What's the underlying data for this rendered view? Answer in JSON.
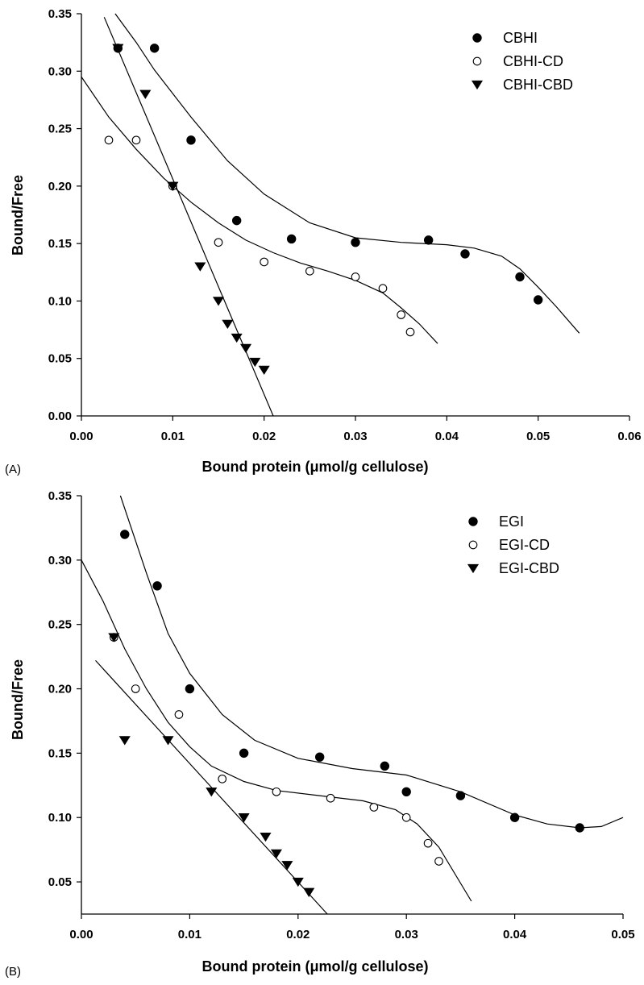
{
  "chart_data": [
    {
      "type": "scatter",
      "panel_label": "(A)",
      "xlabel": "Bound protein (μmol/g cellulose)",
      "ylabel": "Bound/Free",
      "xlim": [
        0,
        0.06
      ],
      "ylim": [
        0,
        0.35
      ],
      "xticks": [
        "0.00",
        "0.01",
        "0.02",
        "0.03",
        "0.04",
        "0.05",
        "0.06"
      ],
      "yticks": [
        "0.00",
        "0.05",
        "0.10",
        "0.15",
        "0.20",
        "0.25",
        "0.30",
        "0.35"
      ],
      "legend_position": "top-right",
      "series": [
        {
          "name": "CBHI",
          "marker": "filled-circle",
          "points": [
            [
              0.004,
              0.32
            ],
            [
              0.008,
              0.32
            ],
            [
              0.012,
              0.24
            ],
            [
              0.017,
              0.17
            ],
            [
              0.023,
              0.154
            ],
            [
              0.03,
              0.151
            ],
            [
              0.038,
              0.153
            ],
            [
              0.042,
              0.141
            ],
            [
              0.048,
              0.121
            ],
            [
              0.05,
              0.101
            ]
          ],
          "fit": [
            [
              0.0037,
              0.35
            ],
            [
              0.006,
              0.325
            ],
            [
              0.008,
              0.301
            ],
            [
              0.012,
              0.26
            ],
            [
              0.016,
              0.222
            ],
            [
              0.02,
              0.193
            ],
            [
              0.025,
              0.168
            ],
            [
              0.03,
              0.155
            ],
            [
              0.035,
              0.151
            ],
            [
              0.04,
              0.149
            ],
            [
              0.043,
              0.146
            ],
            [
              0.046,
              0.139
            ],
            [
              0.048,
              0.128
            ],
            [
              0.05,
              0.112
            ],
            [
              0.052,
              0.095
            ],
            [
              0.0545,
              0.072
            ]
          ]
        },
        {
          "name": "CBHI-CD",
          "marker": "open-circle",
          "points": [
            [
              0.003,
              0.24
            ],
            [
              0.006,
              0.24
            ],
            [
              0.01,
              0.2
            ],
            [
              0.015,
              0.151
            ],
            [
              0.02,
              0.134
            ],
            [
              0.025,
              0.126
            ],
            [
              0.03,
              0.121
            ],
            [
              0.033,
              0.111
            ],
            [
              0.035,
              0.088
            ],
            [
              0.036,
              0.073
            ]
          ],
          "fit": [
            [
              0.0,
              0.295
            ],
            [
              0.003,
              0.26
            ],
            [
              0.006,
              0.232
            ],
            [
              0.009,
              0.207
            ],
            [
              0.012,
              0.186
            ],
            [
              0.015,
              0.168
            ],
            [
              0.018,
              0.153
            ],
            [
              0.021,
              0.142
            ],
            [
              0.024,
              0.133
            ],
            [
              0.027,
              0.126
            ],
            [
              0.03,
              0.118
            ],
            [
              0.033,
              0.107
            ],
            [
              0.035,
              0.094
            ],
            [
              0.037,
              0.08
            ],
            [
              0.039,
              0.063
            ]
          ]
        },
        {
          "name": "CBHI-CBD",
          "marker": "filled-triangle-down",
          "points": [
            [
              0.004,
              0.32
            ],
            [
              0.007,
              0.28
            ],
            [
              0.01,
              0.2
            ],
            [
              0.013,
              0.13
            ],
            [
              0.015,
              0.1
            ],
            [
              0.016,
              0.08
            ],
            [
              0.017,
              0.068
            ],
            [
              0.018,
              0.059
            ],
            [
              0.019,
              0.047
            ],
            [
              0.02,
              0.04
            ]
          ],
          "fit": [
            [
              0.0025,
              0.347
            ],
            [
              0.021,
              0.0
            ]
          ]
        }
      ]
    },
    {
      "type": "scatter",
      "panel_label": "(B)",
      "xlabel": "Bound protein (μmol/g cellulose)",
      "ylabel": "Bound/Free",
      "xlim": [
        0,
        0.05
      ],
      "ylim": [
        0.025,
        0.35
      ],
      "xticks": [
        "0.00",
        "0.01",
        "0.02",
        "0.03",
        "0.04",
        "0.05"
      ],
      "yticks": [
        "0.05",
        "0.10",
        "0.15",
        "0.20",
        "0.25",
        "0.30",
        "0.35"
      ],
      "legend_position": "top-right",
      "series": [
        {
          "name": "EGI",
          "marker": "filled-circle",
          "points": [
            [
              0.004,
              0.32
            ],
            [
              0.007,
              0.28
            ],
            [
              0.01,
              0.2
            ],
            [
              0.015,
              0.15
            ],
            [
              0.022,
              0.147
            ],
            [
              0.028,
              0.14
            ],
            [
              0.03,
              0.12
            ],
            [
              0.035,
              0.117
            ],
            [
              0.04,
              0.1
            ],
            [
              0.046,
              0.092
            ]
          ],
          "fit": [
            [
              0.0036,
              0.35
            ],
            [
              0.006,
              0.29
            ],
            [
              0.008,
              0.243
            ],
            [
              0.01,
              0.212
            ],
            [
              0.013,
              0.18
            ],
            [
              0.016,
              0.16
            ],
            [
              0.02,
              0.146
            ],
            [
              0.025,
              0.138
            ],
            [
              0.03,
              0.133
            ],
            [
              0.035,
              0.12
            ],
            [
              0.04,
              0.102
            ],
            [
              0.043,
              0.095
            ],
            [
              0.046,
              0.092
            ],
            [
              0.048,
              0.093
            ],
            [
              0.05,
              0.1
            ]
          ]
        },
        {
          "name": "EGI-CD",
          "marker": "open-circle",
          "points": [
            [
              0.003,
              0.24
            ],
            [
              0.005,
              0.2
            ],
            [
              0.009,
              0.18
            ],
            [
              0.013,
              0.13
            ],
            [
              0.018,
              0.12
            ],
            [
              0.023,
              0.115
            ],
            [
              0.027,
              0.108
            ],
            [
              0.03,
              0.1
            ],
            [
              0.032,
              0.08
            ],
            [
              0.033,
              0.066
            ]
          ],
          "fit": [
            [
              0.0,
              0.3
            ],
            [
              0.002,
              0.268
            ],
            [
              0.004,
              0.231
            ],
            [
              0.006,
              0.2
            ],
            [
              0.008,
              0.174
            ],
            [
              0.01,
              0.155
            ],
            [
              0.012,
              0.14
            ],
            [
              0.015,
              0.128
            ],
            [
              0.018,
              0.121
            ],
            [
              0.022,
              0.117
            ],
            [
              0.026,
              0.113
            ],
            [
              0.029,
              0.106
            ],
            [
              0.031,
              0.095
            ],
            [
              0.033,
              0.077
            ],
            [
              0.036,
              0.035
            ]
          ]
        },
        {
          "name": "EGI-CBD",
          "marker": "filled-triangle-down",
          "points": [
            [
              0.003,
              0.24
            ],
            [
              0.004,
              0.16
            ],
            [
              0.008,
              0.16
            ],
            [
              0.012,
              0.12
            ],
            [
              0.015,
              0.1
            ],
            [
              0.017,
              0.085
            ],
            [
              0.018,
              0.072
            ],
            [
              0.019,
              0.063
            ],
            [
              0.02,
              0.05
            ],
            [
              0.021,
              0.042
            ]
          ],
          "fit": [
            [
              0.0013,
              0.222
            ],
            [
              0.0227,
              0.025
            ]
          ]
        }
      ]
    }
  ]
}
